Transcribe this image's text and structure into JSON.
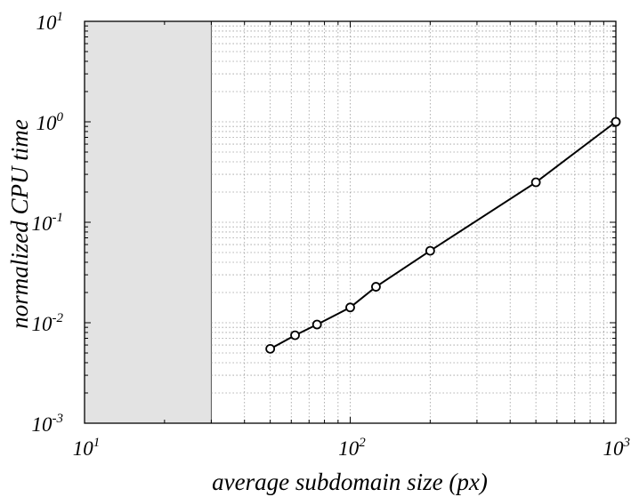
{
  "chart_data": {
    "type": "line",
    "title": "",
    "xlabel": "average subdomain size (px)",
    "ylabel": "normalized CPU time",
    "xscale": "log",
    "yscale": "log",
    "xlim": [
      10,
      1000
    ],
    "ylim": [
      0.001,
      10
    ],
    "grid": true,
    "shaded_region": {
      "x_from": 10,
      "x_to": 30,
      "color": "#e3e3e3"
    },
    "x_ticks": [
      {
        "base": "10",
        "exp": "1",
        "value": 10
      },
      {
        "base": "10",
        "exp": "2",
        "value": 100
      },
      {
        "base": "10",
        "exp": "3",
        "value": 1000
      }
    ],
    "y_ticks": [
      {
        "base": "10",
        "exp": "-3",
        "value": 0.001
      },
      {
        "base": "10",
        "exp": "-2",
        "value": 0.01
      },
      {
        "base": "10",
        "exp": "-1",
        "value": 0.1
      },
      {
        "base": "10",
        "exp": "0",
        "value": 1
      },
      {
        "base": "10",
        "exp": "1",
        "value": 10
      }
    ],
    "series": [
      {
        "marker": "circle",
        "color": "#000000",
        "x": [
          50,
          62,
          75,
          100,
          125,
          200,
          500,
          1000
        ],
        "y": [
          0.0055,
          0.0075,
          0.0096,
          0.0142,
          0.0228,
          0.052,
          0.25,
          1.0
        ]
      }
    ]
  }
}
